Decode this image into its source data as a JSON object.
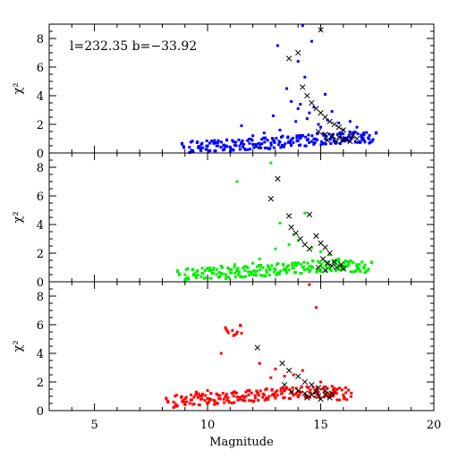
{
  "chart_data": {
    "type": "scatter",
    "xlabel": "Magnitude",
    "xlim": [
      3,
      20
    ],
    "x_ticks": [
      5,
      10,
      15,
      20
    ],
    "annotation": "l=232.35 b=−33.92",
    "panels": [
      {
        "ylabel": "χ²",
        "ylim": [
          0,
          9
        ],
        "y_ticks": [
          0,
          2,
          4,
          6,
          8
        ],
        "color": "#0000ff",
        "dots": [
          [
            9.2,
            0.4
          ],
          [
            9.6,
            0.45
          ],
          [
            10.0,
            0.5
          ],
          [
            10.4,
            0.5
          ],
          [
            10.8,
            0.5
          ],
          [
            11.2,
            0.55
          ],
          [
            11.6,
            0.6
          ],
          [
            12.0,
            0.6
          ],
          [
            12.4,
            0.65
          ],
          [
            12.8,
            0.7
          ],
          [
            13.2,
            0.75
          ],
          [
            13.6,
            0.8
          ],
          [
            14.0,
            0.85
          ],
          [
            14.4,
            0.9
          ],
          [
            14.8,
            0.95
          ],
          [
            15.2,
            1.0
          ],
          [
            15.6,
            1.0
          ],
          [
            16.0,
            1.05
          ],
          [
            16.4,
            1.1
          ],
          [
            16.8,
            1.1
          ],
          [
            17.1,
            1.05
          ],
          [
            11.5,
            1.9
          ],
          [
            12.0,
            1.2
          ],
          [
            12.5,
            1.4
          ],
          [
            12.9,
            2.6
          ],
          [
            13.2,
            1.6
          ],
          [
            13.5,
            4.5
          ],
          [
            13.7,
            3.6
          ],
          [
            13.9,
            2.2
          ],
          [
            14.0,
            3.1
          ],
          [
            14.1,
            3.4
          ],
          [
            14.2,
            8.9
          ],
          [
            14.4,
            2.4
          ],
          [
            14.5,
            2.8
          ],
          [
            14.7,
            3.2
          ],
          [
            14.9,
            2.0
          ],
          [
            15.0,
            1.8
          ],
          [
            15.3,
            2.3
          ],
          [
            15.5,
            2.9
          ],
          [
            15.8,
            2.1
          ],
          [
            16.0,
            1.6
          ],
          [
            16.3,
            2.2
          ],
          [
            16.6,
            1.8
          ],
          [
            16.9,
            1.4
          ],
          [
            14.6,
            7.8
          ],
          [
            13.1,
            7.5
          ],
          [
            14.0,
            6.4
          ],
          [
            15.2,
            4.1
          ],
          [
            14.3,
            5.3
          ]
        ],
        "crosses": [
          [
            15.0,
            8.6
          ],
          [
            14.0,
            7.0
          ],
          [
            13.6,
            6.6
          ],
          [
            14.2,
            4.6
          ],
          [
            14.4,
            4.0
          ],
          [
            14.6,
            3.5
          ],
          [
            14.8,
            3.1
          ],
          [
            15.0,
            2.8
          ],
          [
            15.2,
            2.5
          ],
          [
            15.4,
            2.2
          ],
          [
            15.6,
            2.0
          ],
          [
            15.8,
            1.8
          ],
          [
            16.0,
            1.6
          ],
          [
            15.2,
            1.3
          ],
          [
            15.5,
            1.2
          ],
          [
            15.8,
            1.1
          ],
          [
            16.1,
            1.0
          ],
          [
            16.4,
            1.2
          ],
          [
            15.3,
            0.9
          ],
          [
            15.7,
            0.8
          ],
          [
            16.0,
            0.9
          ],
          [
            16.3,
            0.8
          ],
          [
            16.6,
            1.0
          ],
          [
            14.9,
            1.5
          ]
        ]
      },
      {
        "ylabel": "χ²",
        "ylim": [
          0,
          9
        ],
        "y_ticks": [
          0,
          2,
          4,
          6,
          8
        ],
        "color": "#00ee00",
        "dots": [
          [
            9.0,
            0.5
          ],
          [
            9.4,
            0.55
          ],
          [
            9.8,
            0.6
          ],
          [
            10.2,
            0.6
          ],
          [
            10.6,
            0.6
          ],
          [
            11.0,
            0.65
          ],
          [
            11.4,
            0.7
          ],
          [
            11.8,
            0.7
          ],
          [
            12.2,
            0.75
          ],
          [
            12.6,
            0.8
          ],
          [
            13.0,
            0.85
          ],
          [
            13.4,
            0.9
          ],
          [
            13.8,
            0.95
          ],
          [
            14.2,
            1.0
          ],
          [
            14.6,
            1.05
          ],
          [
            15.0,
            1.1
          ],
          [
            15.4,
            1.1
          ],
          [
            15.8,
            1.15
          ],
          [
            16.2,
            1.1
          ],
          [
            16.6,
            1.05
          ],
          [
            16.9,
            1.0
          ],
          [
            11.3,
            7.0
          ],
          [
            12.8,
            8.3
          ],
          [
            13.2,
            4.1
          ],
          [
            13.0,
            2.3
          ],
          [
            13.6,
            2.6
          ],
          [
            13.8,
            3.3
          ],
          [
            14.0,
            2.9
          ],
          [
            14.3,
            4.8
          ],
          [
            14.6,
            2.4
          ],
          [
            15.0,
            2.1
          ],
          [
            15.4,
            1.9
          ],
          [
            15.8,
            1.6
          ],
          [
            16.2,
            1.4
          ],
          [
            12.3,
            1.6
          ],
          [
            12.0,
            1.3
          ],
          [
            11.2,
            1.2
          ],
          [
            10.6,
            1.1
          ]
        ],
        "crosses": [
          [
            13.1,
            7.2
          ],
          [
            12.8,
            5.8
          ],
          [
            14.5,
            4.7
          ],
          [
            13.6,
            4.6
          ],
          [
            13.7,
            3.8
          ],
          [
            13.9,
            3.4
          ],
          [
            14.1,
            3.0
          ],
          [
            14.3,
            2.6
          ],
          [
            14.5,
            2.3
          ],
          [
            14.8,
            3.2
          ],
          [
            15.0,
            2.7
          ],
          [
            15.2,
            2.4
          ],
          [
            15.4,
            2.0
          ],
          [
            15.1,
            1.6
          ],
          [
            15.3,
            1.3
          ],
          [
            15.5,
            1.1
          ],
          [
            15.7,
            1.0
          ],
          [
            15.9,
            1.2
          ],
          [
            16.0,
            0.9
          ],
          [
            15.2,
            0.8
          ],
          [
            14.9,
            1.0
          ],
          [
            15.6,
            1.4
          ]
        ]
      },
      {
        "ylabel": "χ²",
        "ylim": [
          0,
          9
        ],
        "y_ticks": [
          0,
          2,
          4,
          6,
          8
        ],
        "color": "#ff0000",
        "dots": [
          [
            8.5,
            0.6
          ],
          [
            8.9,
            0.7
          ],
          [
            9.3,
            0.75
          ],
          [
            9.7,
            0.8
          ],
          [
            10.1,
            0.8
          ],
          [
            10.5,
            0.85
          ],
          [
            10.9,
            0.9
          ],
          [
            11.3,
            0.95
          ],
          [
            11.7,
            1.0
          ],
          [
            12.1,
            1.05
          ],
          [
            12.5,
            1.1
          ],
          [
            12.9,
            1.15
          ],
          [
            13.3,
            1.2
          ],
          [
            13.7,
            1.25
          ],
          [
            14.1,
            1.3
          ],
          [
            14.5,
            1.3
          ],
          [
            14.9,
            1.3
          ],
          [
            15.3,
            1.25
          ],
          [
            15.7,
            1.2
          ],
          [
            16.0,
            1.1
          ],
          [
            11.1,
            5.6
          ],
          [
            11.5,
            5.4
          ],
          [
            10.6,
            4.0
          ],
          [
            12.3,
            3.3
          ],
          [
            12.8,
            2.3
          ],
          [
            13.0,
            2.9
          ],
          [
            13.4,
            2.4
          ],
          [
            13.8,
            2.5
          ],
          [
            14.2,
            2.8
          ],
          [
            14.5,
            8.8
          ],
          [
            14.8,
            7.2
          ],
          [
            15.0,
            2.0
          ],
          [
            15.5,
            1.7
          ],
          [
            16.1,
            1.6
          ],
          [
            9.5,
            1.3
          ],
          [
            10.0,
            1.4
          ]
        ],
        "crosses": [
          [
            12.2,
            4.4
          ],
          [
            13.3,
            3.3
          ],
          [
            13.6,
            2.8
          ],
          [
            14.0,
            2.4
          ],
          [
            14.3,
            2.0
          ],
          [
            14.6,
            1.8
          ],
          [
            14.9,
            1.6
          ],
          [
            15.2,
            1.4
          ],
          [
            14.0,
            1.4
          ],
          [
            14.3,
            1.2
          ],
          [
            14.6,
            1.1
          ],
          [
            14.9,
            1.0
          ],
          [
            15.2,
            1.1
          ],
          [
            15.5,
            1.2
          ],
          [
            13.7,
            1.3
          ],
          [
            14.4,
            0.9
          ],
          [
            15.0,
            0.8
          ],
          [
            15.4,
            0.9
          ],
          [
            13.4,
            1.8
          ],
          [
            14.8,
            1.3
          ]
        ]
      }
    ]
  }
}
